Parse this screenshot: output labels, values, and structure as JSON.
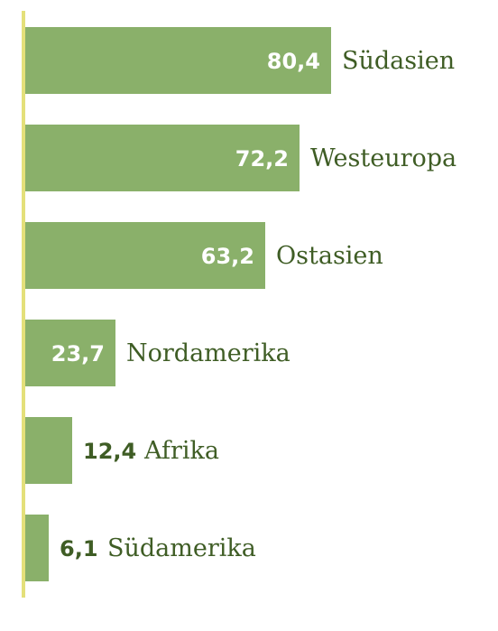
{
  "chart_data": {
    "type": "bar",
    "orientation": "horizontal",
    "categories": [
      "Südasien",
      "Westeuropa",
      "Ostasien",
      "Nordamerika",
      "Afrika",
      "Südamerika"
    ],
    "values": [
      80.4,
      72.2,
      63.2,
      23.7,
      12.4,
      6.1
    ],
    "value_labels": [
      "80,4",
      "72,2",
      "63,2",
      "23,7",
      "12,4",
      "6,1"
    ],
    "xlim": [
      0,
      80.4
    ],
    "grid": false,
    "legend": "none"
  },
  "colors": {
    "bar": "#8ab06a",
    "axis": "#e4e07a",
    "label_inside": "#ffffff",
    "label_outside": "#3f5d25",
    "category_text": "#3f5d25"
  }
}
